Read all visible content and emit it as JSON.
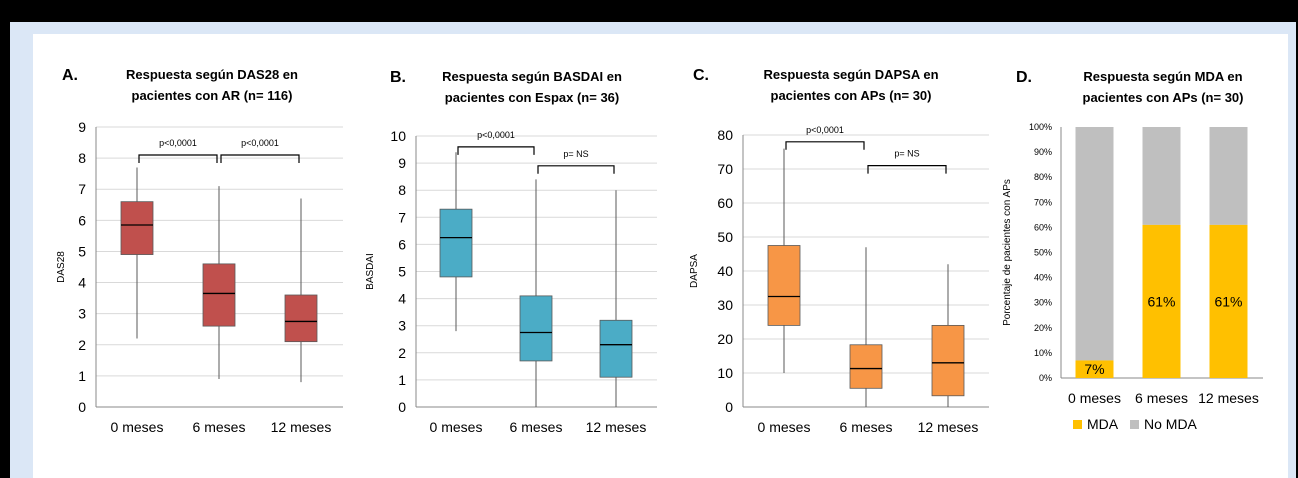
{
  "chart_data": [
    {
      "type": "box",
      "letter": "A.",
      "title_lines": [
        "Respuesta según DAS28 en",
        "pacientes con AR (n= 116)"
      ],
      "ylabel": "DAS28",
      "ylim": [
        0,
        9
      ],
      "yticks": [
        0,
        1,
        2,
        3,
        4,
        5,
        6,
        7,
        8,
        9
      ],
      "categories": [
        "0 meses",
        "6 meses",
        "12 meses"
      ],
      "color": "#c0504d",
      "boxes": [
        {
          "min": 2.2,
          "q1": 4.9,
          "median": 5.85,
          "q3": 6.6,
          "max": 7.7
        },
        {
          "min": 0.9,
          "q1": 2.6,
          "median": 3.65,
          "q3": 4.6,
          "max": 7.1
        },
        {
          "min": 0.8,
          "q1": 2.1,
          "median": 2.75,
          "q3": 3.6,
          "max": 6.7
        }
      ],
      "brackets": [
        {
          "from": 0,
          "to": 1,
          "level": 8.1,
          "label": "p<0,0001"
        },
        {
          "from": 1,
          "to": 2,
          "level": 8.1,
          "label": "p<0,0001"
        }
      ]
    },
    {
      "type": "box",
      "letter": "B.",
      "title_lines": [
        "Respuesta según BASDAI en",
        "pacientes con Espax (n= 36)"
      ],
      "ylabel": "BASDAI",
      "ylim": [
        0,
        10
      ],
      "yticks": [
        0,
        1,
        2,
        3,
        4,
        5,
        6,
        7,
        8,
        9,
        10
      ],
      "categories": [
        "0 meses",
        "6 meses",
        "12 meses"
      ],
      "color": "#4bacc6",
      "boxes": [
        {
          "min": 2.8,
          "q1": 4.8,
          "median": 6.25,
          "q3": 7.3,
          "max": 9.4
        },
        {
          "min": 0.0,
          "q1": 1.7,
          "median": 2.75,
          "q3": 4.1,
          "max": 8.4
        },
        {
          "min": 0.0,
          "q1": 1.1,
          "median": 2.3,
          "q3": 3.2,
          "max": 8.0
        }
      ],
      "brackets": [
        {
          "from": 0,
          "to": 1,
          "level": 9.6,
          "label": "p<0,0001"
        },
        {
          "from": 1,
          "to": 2,
          "level": 8.9,
          "label": "p= NS"
        }
      ]
    },
    {
      "type": "box",
      "letter": "C.",
      "title_lines": [
        "Respuesta según DAPSA en",
        "pacientes con APs (n= 30)"
      ],
      "ylabel": "DAPSA",
      "ylim": [
        0,
        80
      ],
      "yticks": [
        0,
        10,
        20,
        30,
        40,
        50,
        60,
        70,
        80
      ],
      "categories": [
        "0 meses",
        "6 meses",
        "12 meses"
      ],
      "color": "#f79646",
      "boxes": [
        {
          "min": 10,
          "q1": 24,
          "median": 32.5,
          "q3": 47.5,
          "max": 76
        },
        {
          "min": 0,
          "q1": 5.5,
          "median": 11.3,
          "q3": 18.3,
          "max": 47
        },
        {
          "min": 0,
          "q1": 3.3,
          "median": 13,
          "q3": 24,
          "max": 42
        }
      ],
      "brackets": [
        {
          "from": 0,
          "to": 1,
          "level": 78,
          "label": "p<0,0001"
        },
        {
          "from": 1,
          "to": 2,
          "level": 71,
          "label": "p= NS"
        }
      ]
    },
    {
      "type": "stacked_bar_100",
      "letter": "D.",
      "title_lines": [
        "Respuesta según MDA en",
        "pacientes con APs (n= 30)"
      ],
      "ylabel": "Porcentaje de pacientes con APs",
      "ylim": [
        0,
        100
      ],
      "yticks": [
        "0%",
        "10%",
        "20%",
        "30%",
        "40%",
        "50%",
        "60%",
        "70%",
        "80%",
        "90%",
        "100%"
      ],
      "categories": [
        "0 meses",
        "6 meses",
        "12 meses"
      ],
      "series": [
        {
          "name": "MDA",
          "color": "#ffc000",
          "values": [
            7,
            61,
            61
          ],
          "labels": [
            "7%",
            "61%",
            "61%"
          ]
        },
        {
          "name": "No MDA",
          "color": "#bfbfbf",
          "values": [
            93,
            39,
            39
          ]
        }
      ]
    }
  ]
}
